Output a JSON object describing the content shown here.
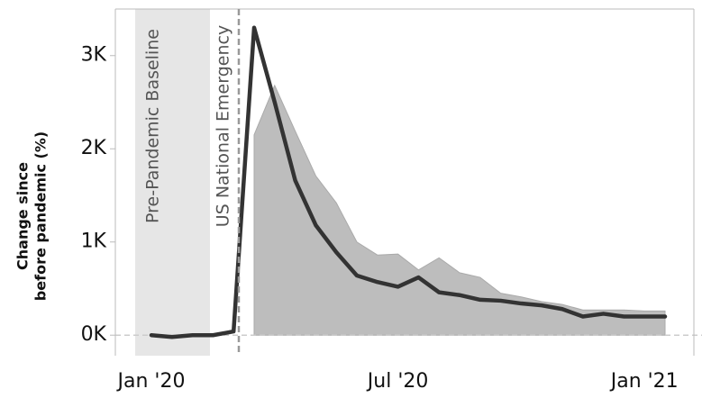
{
  "chart_data": {
    "type": "line",
    "y_label": [
      "Change since",
      "before pandemic (%)"
    ],
    "annotations": [
      "Pre-Pandemic Baseline",
      "US National Emergency"
    ],
    "categories": [
      "Jan '20",
      null,
      null,
      null,
      null,
      null,
      null,
      null,
      null,
      null,
      null,
      null,
      "Jul '20",
      null,
      null,
      null,
      null,
      null,
      null,
      null,
      null,
      null,
      null,
      null,
      "Jan '21",
      null
    ],
    "series": [
      {
        "style": "area",
        "color": "#bdbdbd",
        "values": [
          null,
          null,
          null,
          null,
          null,
          2150,
          2680,
          2190,
          1710,
          1420,
          1000,
          860,
          870,
          700,
          830,
          670,
          620,
          450,
          410,
          360,
          330,
          270,
          270,
          270,
          260,
          260
        ]
      },
      {
        "style": "line",
        "color": "#333333",
        "values": [
          0,
          -20,
          0,
          0,
          40,
          3300,
          2500,
          1660,
          1180,
          890,
          640,
          570,
          520,
          620,
          460,
          430,
          380,
          370,
          340,
          320,
          280,
          200,
          230,
          200,
          200,
          200
        ]
      }
    ],
    "ylim": [
      -220,
      3500
    ],
    "yticks": [
      {
        "value": 0,
        "label": "0K"
      },
      {
        "value": 1000,
        "label": "1K"
      },
      {
        "value": 2000,
        "label": "2K"
      },
      {
        "value": 3000,
        "label": "3K"
      }
    ]
  }
}
